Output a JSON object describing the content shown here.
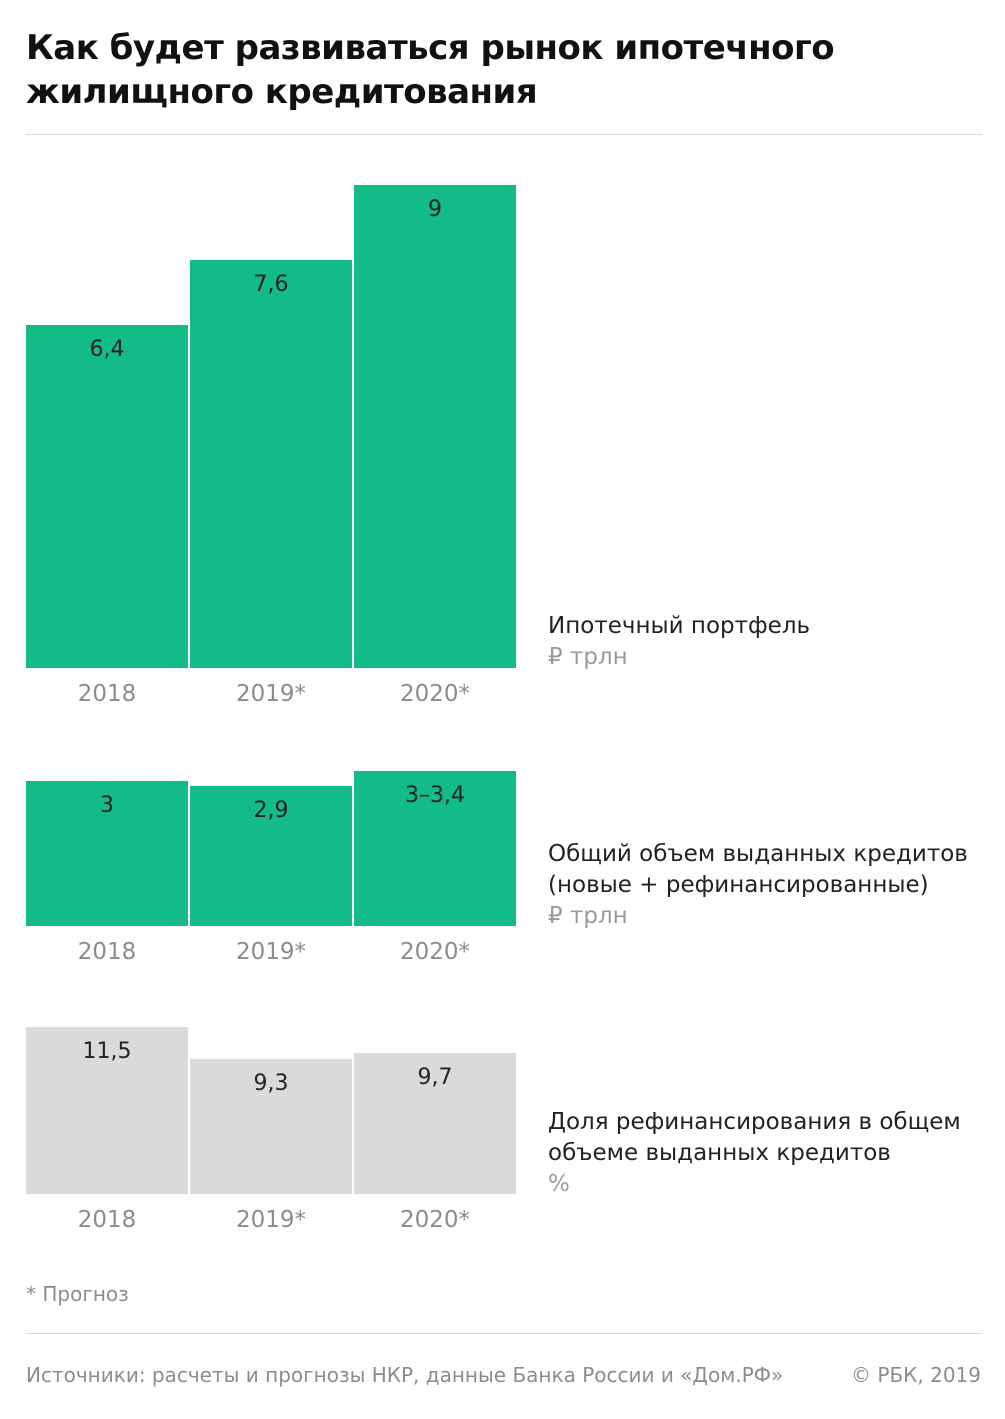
{
  "title": {
    "line1": "Как будет развиваться рынок ипотечного",
    "line2": "жилищного кредитования"
  },
  "chart_data": [
    {
      "type": "bar",
      "categories": [
        "2018",
        "2019*",
        "2020*"
      ],
      "values": [
        6.4,
        7.6,
        9
      ],
      "value_labels": [
        "6,4",
        "7,6",
        "9"
      ],
      "label_lines": [
        "Ипотечный портфель"
      ],
      "unit": "₽ трлн",
      "ylim": [
        0,
        9
      ],
      "color": "#13bb87"
    },
    {
      "type": "bar",
      "categories": [
        "2018",
        "2019*",
        "2020*"
      ],
      "values": [
        3,
        2.9,
        3.2
      ],
      "value_labels": [
        "3",
        "2,9",
        "3–3,4"
      ],
      "label_lines": [
        "Общий объем выданных кредитов",
        "(новые + рефинансированные)"
      ],
      "unit": "₽ трлн",
      "ylim": [
        0,
        3.2
      ],
      "color": "#13bb87"
    },
    {
      "type": "bar",
      "categories": [
        "2018",
        "2019*",
        "2020*"
      ],
      "values": [
        11.5,
        9.3,
        9.7
      ],
      "value_labels": [
        "11,5",
        "9,3",
        "9,7"
      ],
      "label_lines": [
        "Доля рефинансирования в общем",
        "объеме выданных кредитов"
      ],
      "unit": "%",
      "ylim": [
        0,
        11.5
      ],
      "color": "#dadada"
    }
  ],
  "note": "* Прогноз",
  "footer": {
    "sources": "Источники: расчеты и прогнозы НКР, данные Банка России и «Дом.РФ»",
    "copyright": "© РБК, 2019"
  }
}
